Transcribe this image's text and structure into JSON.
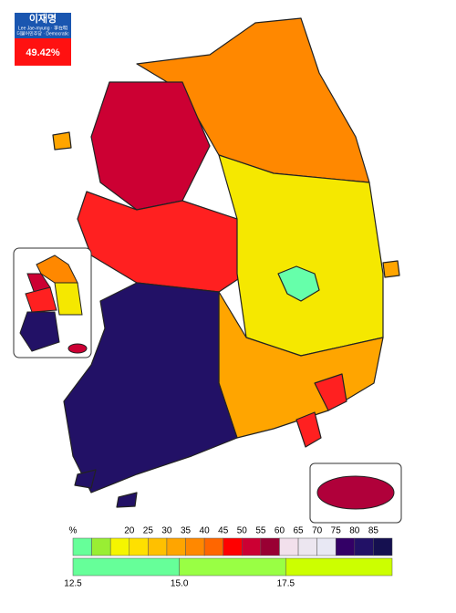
{
  "candidate": {
    "name": "이재명",
    "name_latin": "Lee Jae-myung · 李在明",
    "party": "더불어민주당 · Democratic",
    "share": "49.42%"
  },
  "legend": {
    "unit": "%",
    "top_labels": [
      "20",
      "25",
      "30",
      "35",
      "40",
      "45",
      "50",
      "55",
      "60",
      "65",
      "70",
      "75",
      "80",
      "85"
    ],
    "top_colors": [
      "#66ff99",
      "#99ee33",
      "#f5f500",
      "#ffe000",
      "#ffc000",
      "#ffa500",
      "#ff8800",
      "#ff6600",
      "#ff0000",
      "#cc0033",
      "#990033",
      "#f2e0ec",
      "#ece6f0",
      "#e8e8f4",
      "#330066",
      "#221166",
      "#151050"
    ],
    "bottom_labels": [
      "12.5",
      "15.0",
      "17.5"
    ],
    "bottom_colors": [
      "#66ff99",
      "#99ff44",
      "#ccff00"
    ]
  }
}
